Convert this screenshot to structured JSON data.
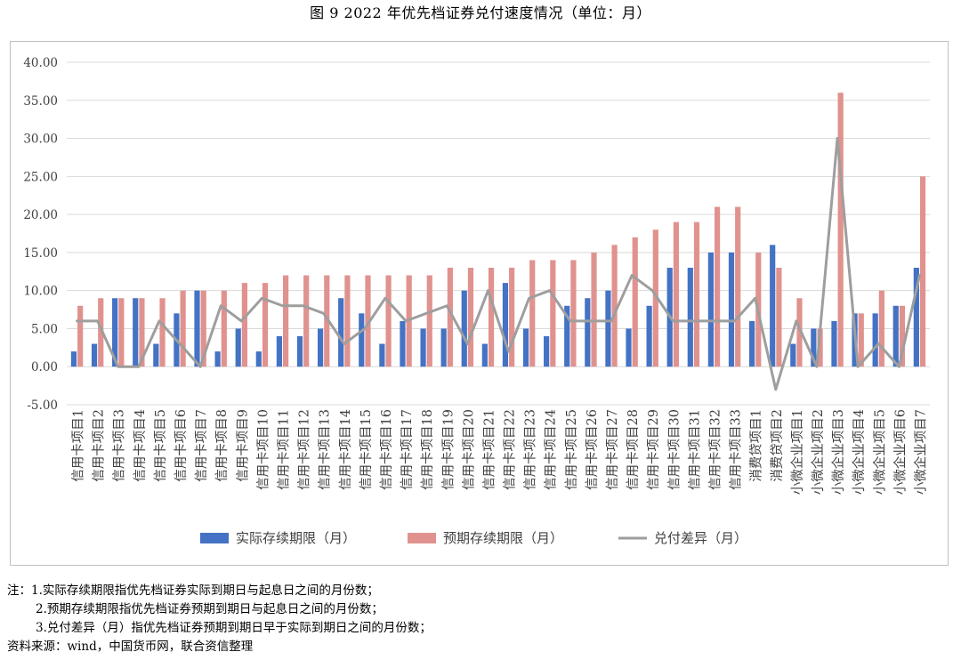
{
  "figure": {
    "title": "图 9   2022 年优先档证券兑付速度情况（单位：月）"
  },
  "notes": {
    "n0": "注：1.实际存续期限指优先档证券实际到期日与起息日之间的月份数；",
    "n1": "2.预期存续期限指优先档证券预期到期日与起息日之间的月份数；",
    "n2": "3.兑付差异（月）指优先档证券预期到期日早于实际到期日之间的月份数；",
    "source": "资料来源：wind，中国货币网，联合资信整理"
  },
  "chart_data": {
    "type": "bar",
    "title": "",
    "xlabel": "",
    "ylabel": "",
    "ylim": [
      -5,
      40
    ],
    "yticks": [
      "40.00",
      "35.00",
      "30.00",
      "25.00",
      "20.00",
      "15.00",
      "10.00",
      "5.00",
      "0.00",
      "-5.00"
    ],
    "ytick_values": [
      40,
      35,
      30,
      25,
      20,
      15,
      10,
      5,
      0,
      -5
    ],
    "grid": true,
    "legend_position": "bottom",
    "categories": [
      "信用卡项目1",
      "信用卡项目2",
      "信用卡项目3",
      "信用卡项目4",
      "信用卡项目5",
      "信用卡项目6",
      "信用卡项目7",
      "信用卡项目8",
      "信用卡项目9",
      "信用卡项目10",
      "信用卡项目11",
      "信用卡项目12",
      "信用卡项目13",
      "信用卡项目14",
      "信用卡项目15",
      "信用卡项目16",
      "信用卡项目17",
      "信用卡项目18",
      "信用卡项目19",
      "信用卡项目20",
      "信用卡项目21",
      "信用卡项目22",
      "信用卡项目23",
      "信用卡项目24",
      "信用卡项目25",
      "信用卡项目26",
      "信用卡项目27",
      "信用卡项目28",
      "信用卡项目29",
      "信用卡项目30",
      "信用卡项目31",
      "信用卡项目32",
      "信用卡项目33",
      "消费贷项目1",
      "消费贷项目2",
      "小微企业项目1",
      "小微企业项目2",
      "小微企业项目3",
      "小微企业项目4",
      "小微企业项目5",
      "小微企业项目6",
      "小微企业项目7"
    ],
    "series": [
      {
        "name": "实际存续期限（月）",
        "kind": "bar",
        "color": "#4472c4",
        "values": [
          2,
          3,
          9,
          9,
          3,
          7,
          10,
          2,
          5,
          2,
          4,
          4,
          5,
          9,
          7,
          3,
          6,
          5,
          5,
          10,
          3,
          11,
          5,
          4,
          8,
          9,
          10,
          5,
          8,
          13,
          13,
          15,
          15,
          6,
          16,
          3,
          5,
          6,
          7,
          7,
          8,
          13
        ]
      },
      {
        "name": "预期存续期限（月）",
        "kind": "bar",
        "color": "#e0928f",
        "values": [
          8,
          9,
          9,
          9,
          9,
          10,
          10,
          10,
          11,
          11,
          12,
          12,
          12,
          12,
          12,
          12,
          12,
          12,
          13,
          13,
          13,
          13,
          14,
          14,
          14,
          15,
          16,
          17,
          18,
          19,
          19,
          21,
          21,
          15,
          13,
          9,
          5,
          36,
          7,
          10,
          8,
          25
        ]
      },
      {
        "name": "兑付差异（月）",
        "kind": "line",
        "color": "#9e9e9e",
        "values": [
          6,
          6,
          0,
          0,
          6,
          3,
          0,
          8,
          6,
          9,
          8,
          8,
          7,
          3,
          5,
          9,
          6,
          7,
          8,
          3,
          10,
          2,
          9,
          10,
          6,
          6,
          6,
          12,
          10,
          6,
          6,
          6,
          6,
          9,
          -3,
          6,
          0,
          30,
          0,
          3,
          0,
          12
        ]
      }
    ]
  }
}
